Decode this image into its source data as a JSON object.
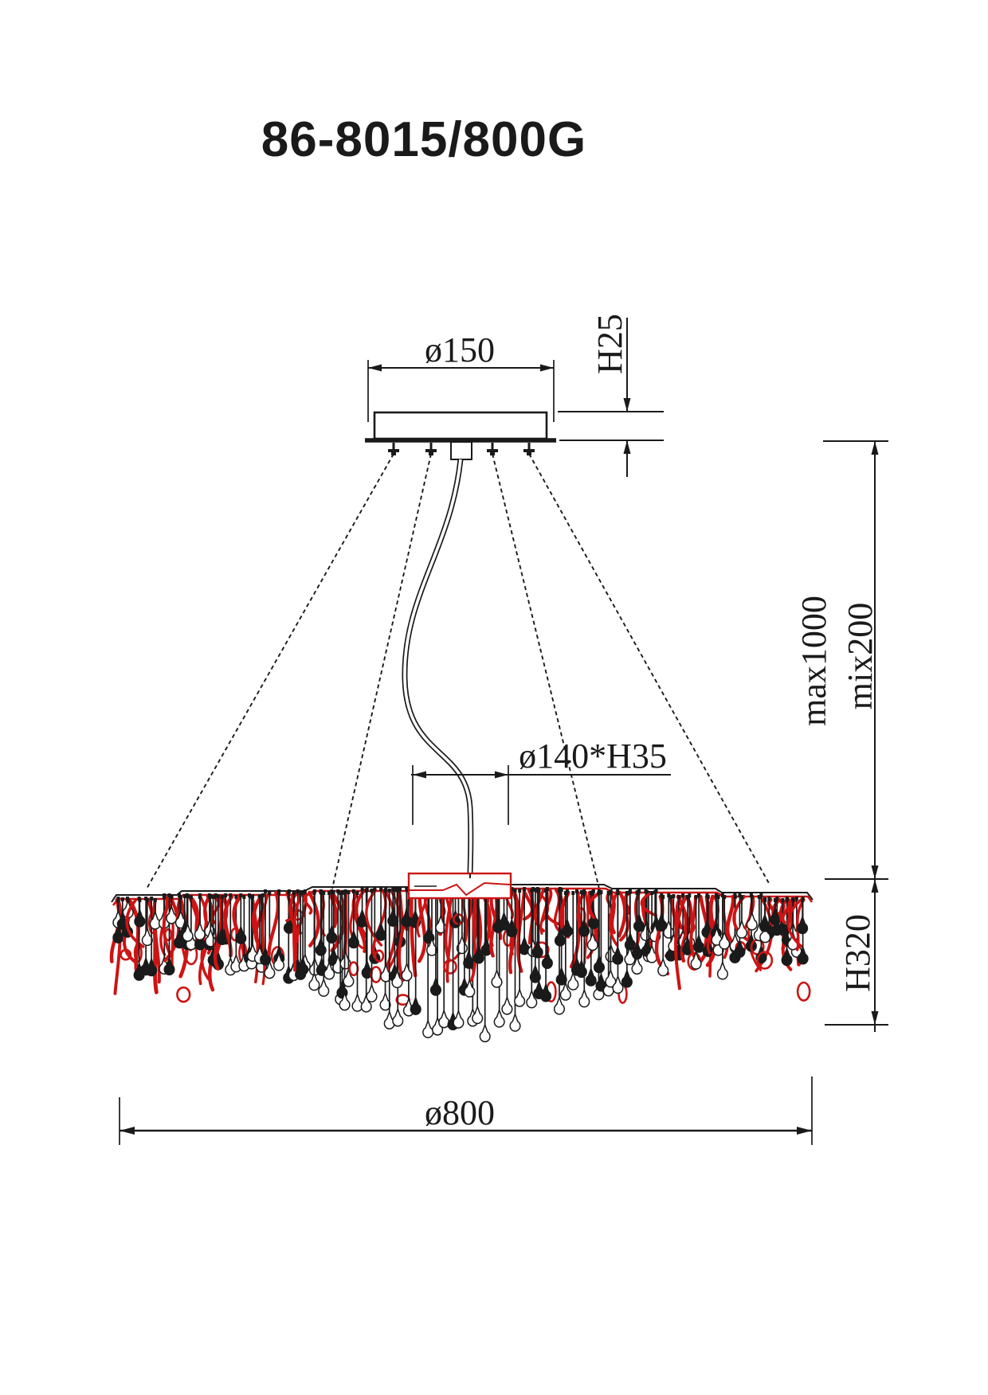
{
  "page": {
    "title": "86-8015/800G"
  },
  "dimensions": {
    "canopy_diameter": "ø150",
    "canopy_height": "H25",
    "hub_size": "ø140*H35",
    "suspension_max": "max1000",
    "suspension_min": "mix200",
    "body_height": "H320",
    "body_diameter": "ø800"
  },
  "drawing": {
    "wire_red": "#cc1414",
    "ink": "#1a1a1a",
    "background": "#ffffff"
  }
}
